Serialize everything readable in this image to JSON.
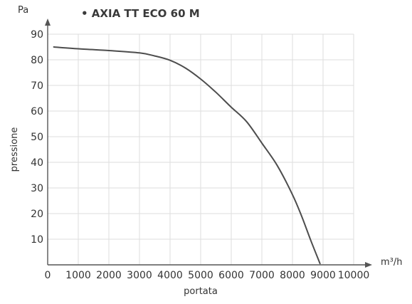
{
  "chart_data": {
    "type": "line",
    "title": "• AXIA TT ECO 60 M",
    "xlabel": "portata",
    "ylabel": "pressione",
    "x_unit": "m³/h",
    "y_unit": "Pa",
    "xlim": [
      0,
      10000
    ],
    "ylim": [
      0,
      90
    ],
    "x_ticks": [
      "0",
      "1000",
      "2000",
      "3000",
      "4000",
      "5000",
      "6000",
      "7000",
      "8000",
      "9000",
      "10000"
    ],
    "y_ticks": [
      "10",
      "20",
      "30",
      "40",
      "50",
      "60",
      "70",
      "80",
      "90"
    ],
    "grid": true,
    "series": [
      {
        "x": [
          200,
          1000,
          2000,
          3000,
          3500,
          4000,
          4500,
          5000,
          5500,
          6000,
          6500,
          7000,
          7500,
          8000,
          8300,
          8600,
          8900
        ],
        "y": [
          85,
          84.3,
          83.6,
          82.7,
          81.5,
          79.8,
          76.8,
          72.5,
          67.3,
          61.5,
          55.9,
          47.5,
          38.8,
          27.4,
          19,
          9.5,
          0.5
        ]
      }
    ],
    "line_color": "#4d4d4d",
    "grid_color": "#dedede",
    "axis_color": "#555555"
  }
}
